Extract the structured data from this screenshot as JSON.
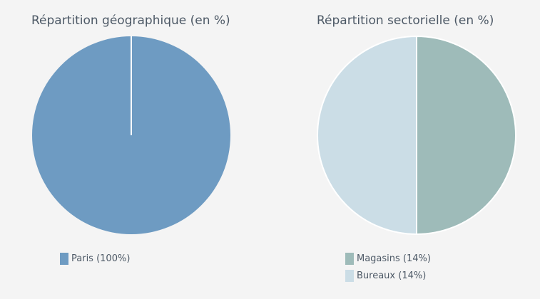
{
  "chart_data": [
    {
      "type": "pie",
      "title": "Répartition géographique (en %)",
      "slices": [
        {
          "label": "Paris (100%)",
          "value": 100,
          "color": "#6e9bc2"
        }
      ]
    },
    {
      "type": "pie",
      "title": "Répartition sectorielle (en %)",
      "slices": [
        {
          "label": "Magasins (14%)",
          "value": 14,
          "color": "#9ebbb9"
        },
        {
          "label": "Bureaux (14%)",
          "value": 14,
          "color": "#cbdde6"
        }
      ]
    }
  ]
}
